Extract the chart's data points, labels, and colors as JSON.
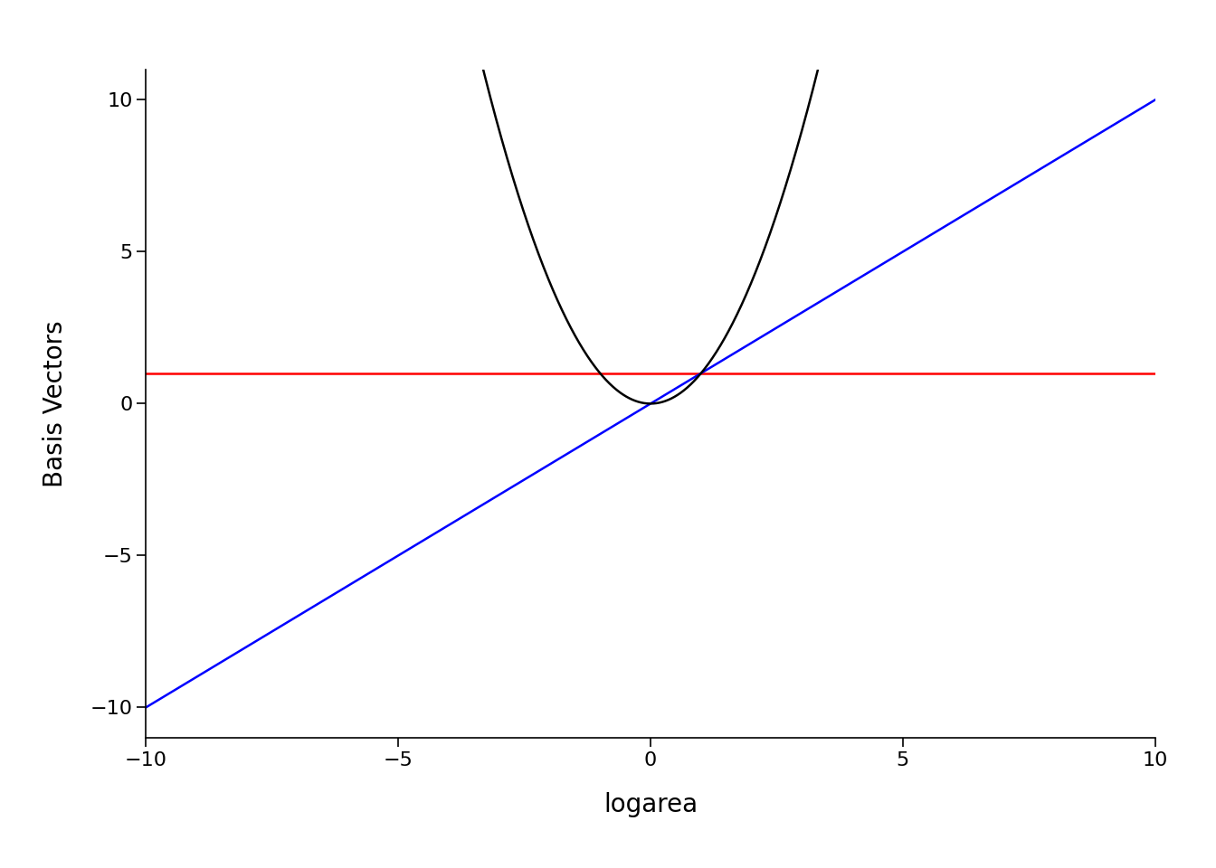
{
  "title": "",
  "xlabel": "logarea",
  "ylabel": "Basis Vectors",
  "xlim": [
    -10,
    10
  ],
  "ylim": [
    -11,
    11
  ],
  "x_ticks": [
    -10,
    -5,
    0,
    5,
    10
  ],
  "y_ticks": [
    -10,
    -5,
    0,
    5,
    10
  ],
  "line_constant_color": "#FF0000",
  "line_constant_y": 1.0,
  "line_linear_color": "#0000FF",
  "line_quadratic_color": "#000000",
  "background_color": "#FFFFFF",
  "linewidth": 1.8,
  "xlabel_fontsize": 20,
  "ylabel_fontsize": 20,
  "tick_fontsize": 16
}
